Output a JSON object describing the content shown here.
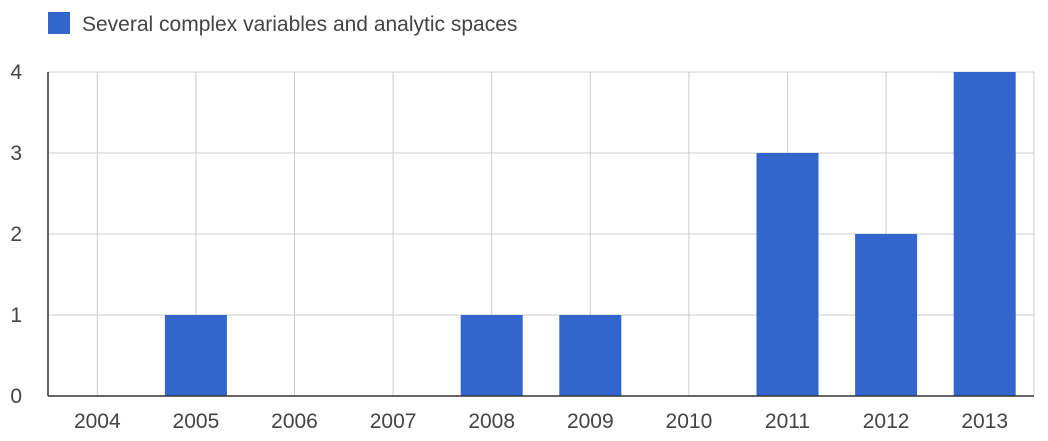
{
  "chart_data": {
    "type": "bar",
    "title": "",
    "xlabel": "",
    "ylabel": "",
    "categories": [
      "2004",
      "2005",
      "2006",
      "2007",
      "2008",
      "2009",
      "2010",
      "2011",
      "2012",
      "2013"
    ],
    "series": [
      {
        "name": "Several complex variables and analytic spaces",
        "values": [
          0,
          1,
          0,
          0,
          1,
          1,
          0,
          3,
          2,
          4
        ],
        "color": "#3366cc"
      }
    ],
    "ylim": [
      0,
      4
    ],
    "yticks": [
      "0",
      "1",
      "2",
      "3",
      "4"
    ],
    "grid": true,
    "legend": "top-left"
  },
  "colors": {
    "bar": "#3366cc",
    "grid": "#cccccc",
    "axis": "#333333",
    "text": "#444444"
  }
}
